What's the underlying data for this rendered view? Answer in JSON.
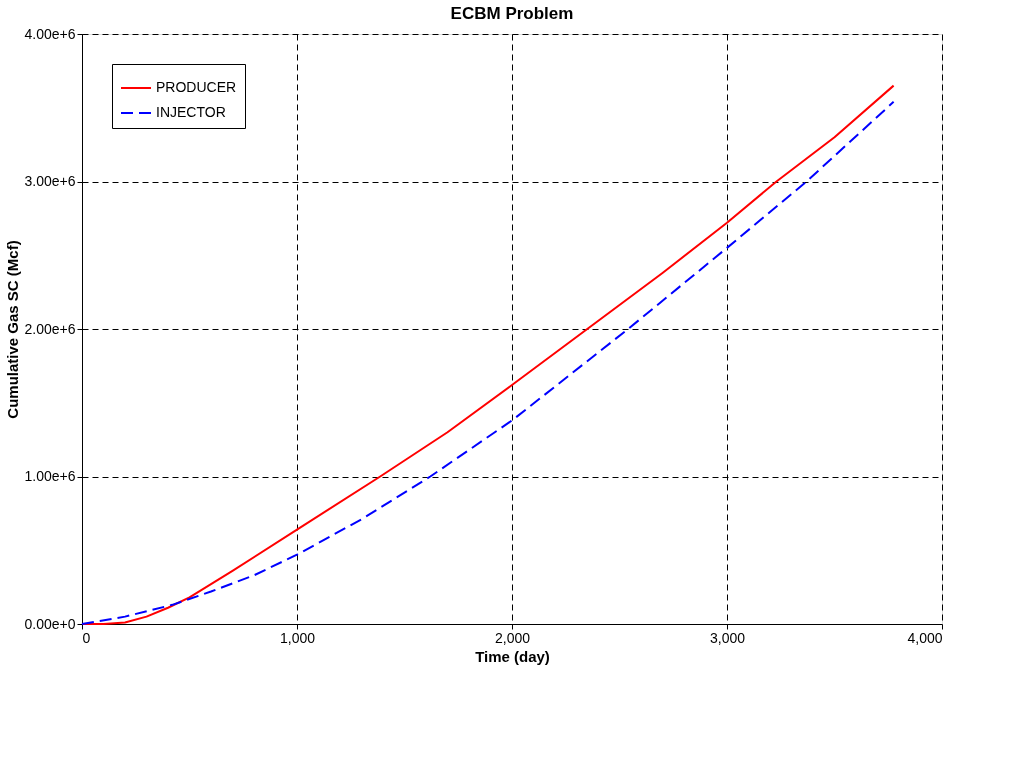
{
  "chart_data": {
    "type": "line",
    "title": "ECBM Problem",
    "xlabel": "Time (day)",
    "ylabel": "Cumulative Gas SC (Mcf)",
    "xlim": [
      0,
      4000
    ],
    "xticks": [
      0,
      {
        "value": 1000,
        "label": "1,000"
      },
      {
        "value": 2000,
        "label": "2,000"
      },
      {
        "value": 3000,
        "label": "3,000"
      },
      {
        "value": 4000,
        "label": "4,000"
      }
    ],
    "ylim": [
      0,
      4000000
    ],
    "yticks": [
      {
        "value": 0,
        "label": "0.00e+0"
      },
      {
        "value": 1000000,
        "label": "1.00e+6"
      },
      {
        "value": 2000000,
        "label": "2.00e+6"
      },
      {
        "value": 3000000,
        "label": "3.00e+6"
      },
      {
        "value": 4000000,
        "label": "4.00e+6"
      }
    ],
    "grid": true,
    "legend": "top left",
    "marker": "none",
    "series": [
      {
        "name": "PRODUCER",
        "color": "#ff0000",
        "line_style": "solid",
        "x": [
          0,
          100,
          200,
          300,
          400,
          500,
          700,
          1000,
          1387,
          1700,
          2000,
          2350,
          2700,
          3000,
          3230,
          3500,
          3775
        ],
        "values": [
          0,
          0,
          10000,
          50000,
          110000,
          180000,
          360000,
          640000,
          1000000,
          1300000,
          1620000,
          2000000,
          2380000,
          2720000,
          3000000,
          3300000,
          3650000
        ]
      },
      {
        "name": "INJECTOR",
        "color": "#0000ff",
        "line_style": "dashed",
        "x": [
          0,
          200,
          420,
          600,
          800,
          1000,
          1300,
          1620,
          2000,
          2540,
          3000,
          3370,
          3775
        ],
        "values": [
          0,
          50000,
          130000,
          220000,
          330000,
          470000,
          710000,
          1000000,
          1380000,
          2000000,
          2550000,
          3000000,
          3540000
        ]
      }
    ]
  }
}
